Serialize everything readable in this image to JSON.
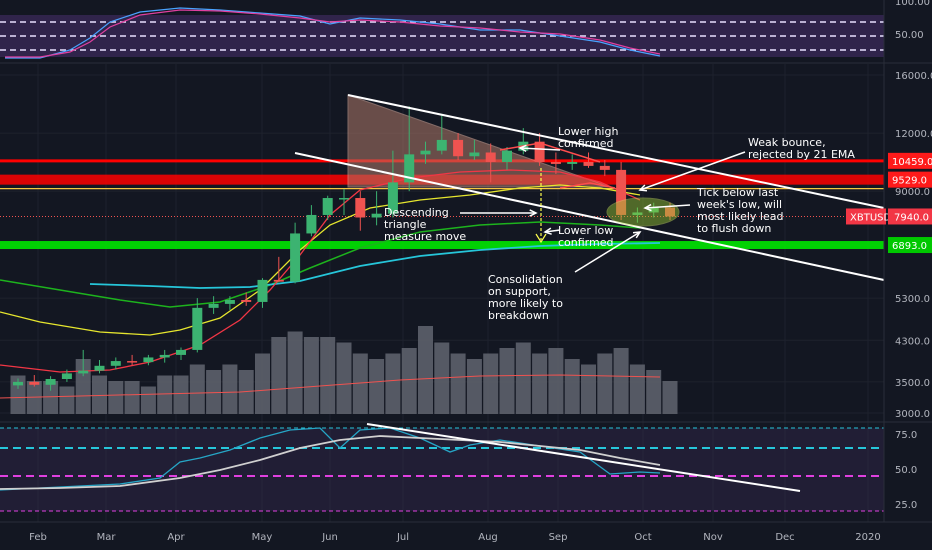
{
  "chart_data": {
    "type": "candlestick",
    "symbol": "XBTUSD",
    "last_price": "7940.0",
    "price_axis": {
      "scale": "log",
      "ticks": [
        {
          "value": 16000,
          "label": "16000.0"
        },
        {
          "value": 12000,
          "label": "12000.0"
        },
        {
          "value": 9000,
          "label": "9000.0"
        },
        {
          "value": 6900,
          "label": "6900.0"
        },
        {
          "value": 5300,
          "label": "5300.0"
        },
        {
          "value": 4300,
          "label": "4300.0"
        },
        {
          "value": 3500,
          "label": "3500.0"
        },
        {
          "value": 3000,
          "label": "3000.0"
        }
      ]
    },
    "time_axis": {
      "labels": [
        "Feb",
        "Mar",
        "Apr",
        "May",
        "Jun",
        "Jul",
        "Aug",
        "Sep",
        "Oct",
        "Nov",
        "Dec",
        "2020"
      ]
    },
    "candles": [
      {
        "o": 3440,
        "h": 3560,
        "l": 3380,
        "c": 3500
      },
      {
        "o": 3500,
        "h": 3620,
        "l": 3420,
        "c": 3450
      },
      {
        "o": 3450,
        "h": 3600,
        "l": 3350,
        "c": 3550
      },
      {
        "o": 3550,
        "h": 3720,
        "l": 3500,
        "c": 3650
      },
      {
        "o": 3650,
        "h": 4100,
        "l": 3600,
        "c": 3700
      },
      {
        "o": 3700,
        "h": 3900,
        "l": 3650,
        "c": 3790
      },
      {
        "o": 3790,
        "h": 3950,
        "l": 3720,
        "c": 3880
      },
      {
        "o": 3880,
        "h": 4000,
        "l": 3800,
        "c": 3860
      },
      {
        "o": 3860,
        "h": 4000,
        "l": 3800,
        "c": 3950
      },
      {
        "o": 3950,
        "h": 4100,
        "l": 3850,
        "c": 4000
      },
      {
        "o": 4000,
        "h": 4150,
        "l": 3900,
        "c": 4100
      },
      {
        "o": 4100,
        "h": 5300,
        "l": 4050,
        "c": 5050
      },
      {
        "o": 5050,
        "h": 5350,
        "l": 4900,
        "c": 5150
      },
      {
        "o": 5150,
        "h": 5350,
        "l": 5000,
        "c": 5250
      },
      {
        "o": 5250,
        "h": 5450,
        "l": 5100,
        "c": 5200
      },
      {
        "o": 5200,
        "h": 5850,
        "l": 5050,
        "c": 5800
      },
      {
        "o": 5800,
        "h": 6500,
        "l": 5750,
        "c": 5750
      },
      {
        "o": 5750,
        "h": 7700,
        "l": 5700,
        "c": 7300
      },
      {
        "o": 7300,
        "h": 8400,
        "l": 7200,
        "c": 8000
      },
      {
        "o": 8000,
        "h": 8800,
        "l": 7800,
        "c": 8700
      },
      {
        "o": 8700,
        "h": 9100,
        "l": 8000,
        "c": 8700
      },
      {
        "o": 8700,
        "h": 9000,
        "l": 7400,
        "c": 7900
      },
      {
        "o": 7900,
        "h": 9000,
        "l": 7600,
        "c": 8050
      },
      {
        "o": 8050,
        "h": 11000,
        "l": 7900,
        "c": 9400
      },
      {
        "o": 9400,
        "h": 13700,
        "l": 9000,
        "c": 10800
      },
      {
        "o": 10800,
        "h": 11500,
        "l": 10300,
        "c": 11000
      },
      {
        "o": 11000,
        "h": 13200,
        "l": 10800,
        "c": 11600
      },
      {
        "o": 11600,
        "h": 12000,
        "l": 10500,
        "c": 10700
      },
      {
        "o": 10700,
        "h": 11600,
        "l": 10500,
        "c": 10900
      },
      {
        "o": 10900,
        "h": 11400,
        "l": 9400,
        "c": 10400
      },
      {
        "o": 10400,
        "h": 11200,
        "l": 10000,
        "c": 11000
      },
      {
        "o": 11000,
        "h": 12300,
        "l": 10800,
        "c": 11500
      },
      {
        "o": 11500,
        "h": 12000,
        "l": 10200,
        "c": 10400
      },
      {
        "o": 10400,
        "h": 10900,
        "l": 9800,
        "c": 10300
      },
      {
        "o": 10300,
        "h": 10800,
        "l": 10000,
        "c": 10400
      },
      {
        "o": 10400,
        "h": 10900,
        "l": 10100,
        "c": 10200
      },
      {
        "o": 10200,
        "h": 10500,
        "l": 9700,
        "c": 10000
      },
      {
        "o": 10000,
        "h": 10400,
        "l": 7800,
        "c": 8000
      },
      {
        "o": 8000,
        "h": 8300,
        "l": 7700,
        "c": 8100
      },
      {
        "o": 8100,
        "h": 8500,
        "l": 7900,
        "c": 8300
      },
      {
        "o": 8300,
        "h": 8500,
        "l": 7800,
        "c": 7940
      }
    ],
    "volume": [
      35,
      30,
      30,
      25,
      50,
      35,
      30,
      30,
      25,
      35,
      35,
      45,
      40,
      45,
      40,
      55,
      70,
      75,
      70,
      70,
      65,
      55,
      50,
      55,
      60,
      80,
      65,
      55,
      50,
      55,
      60,
      65,
      55,
      60,
      50,
      45,
      55,
      60,
      45,
      40,
      30
    ],
    "horizontal_levels": [
      {
        "value": 10459.0,
        "label": "10459.0",
        "color": "#ff0000"
      },
      {
        "value": 9529.0,
        "label": "9529.0",
        "color": "#ff0000"
      },
      {
        "value": 6893.0,
        "label": "6893.0",
        "color": "#00e600"
      }
    ],
    "oscillator_top": {
      "ticks": [
        {
          "value": 100,
          "label": "100.00"
        },
        {
          "value": 50,
          "label": "50.00"
        }
      ]
    },
    "rsi": {
      "ticks": [
        {
          "value": 75,
          "label": "75.0"
        },
        {
          "value": 50,
          "label": "50.0"
        },
        {
          "value": 25,
          "label": "25.0"
        }
      ]
    },
    "annotations": [
      {
        "id": "lower-high",
        "lines": [
          "Lower high",
          "confirmed"
        ]
      },
      {
        "id": "weak-bounce",
        "lines": [
          "Weak bounce,",
          "rejected by 21 EMA"
        ]
      },
      {
        "id": "tick-below",
        "lines": [
          "Tick below last",
          "week's low, will",
          "most likely lead",
          "to flush down"
        ]
      },
      {
        "id": "descending-triangle",
        "lines": [
          "Descending",
          "triangle",
          "measure move"
        ]
      },
      {
        "id": "lower-low",
        "lines": [
          "Lower low",
          "confirmed"
        ]
      },
      {
        "id": "consolidation",
        "lines": [
          "Consolidation",
          "on support,",
          "more likely to",
          "breakdown"
        ]
      }
    ]
  },
  "colors": {
    "background": "#131722",
    "up": "#26a69a",
    "up_candle": "#3cb371",
    "down": "#ef5350",
    "grid": "#1e222d",
    "axis_text": "#b2b5be",
    "osc_band": "#3b2a5a"
  }
}
